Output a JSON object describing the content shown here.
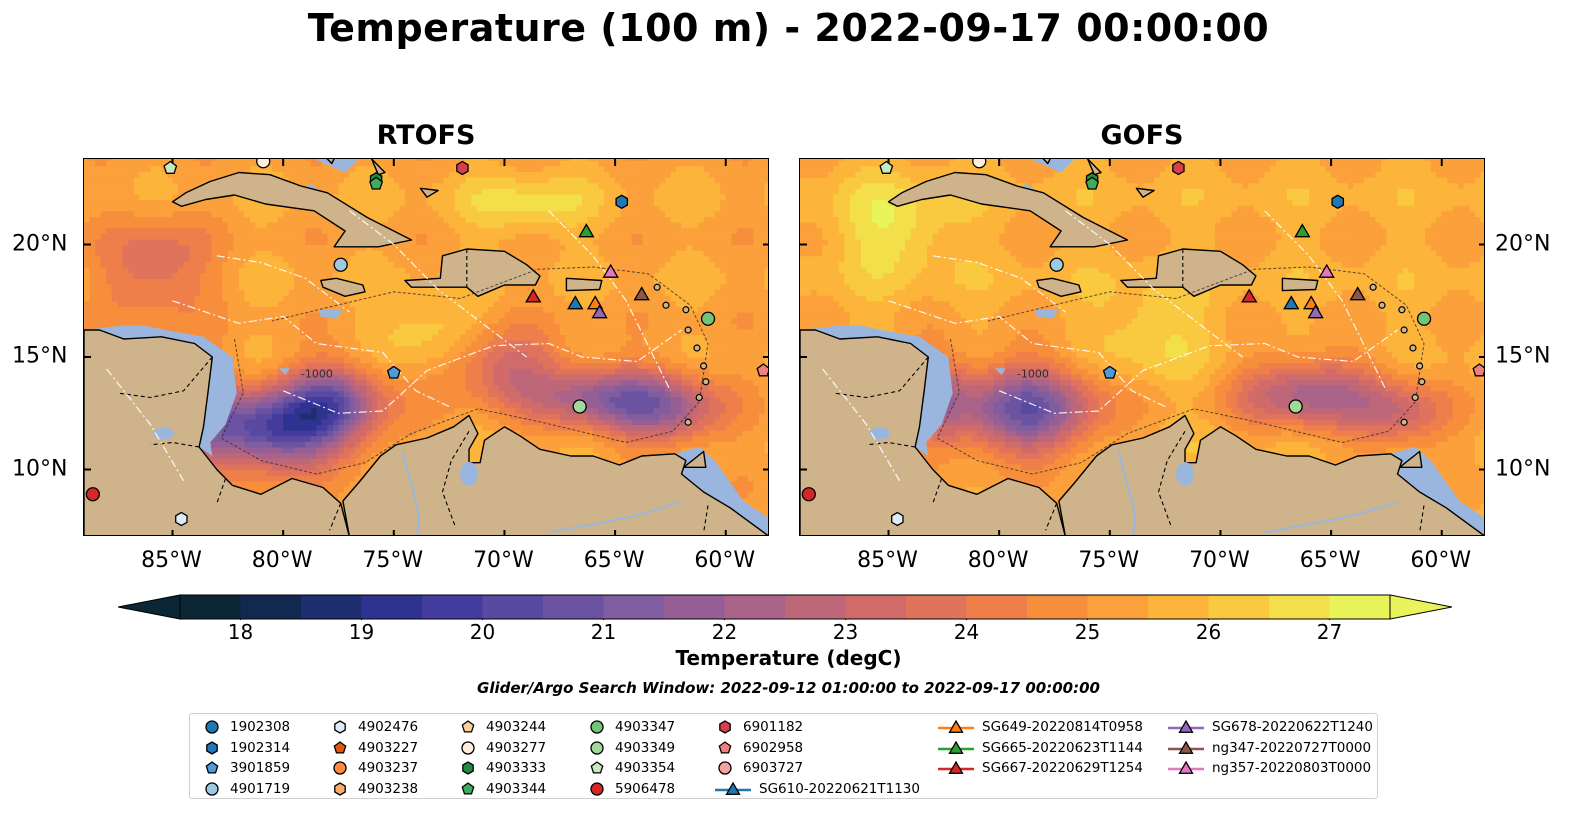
{
  "suptitle": "Temperature (100 m) - 2022-09-17 00:00:00",
  "panels": [
    {
      "title": "RTOFS",
      "field": "rtofs"
    },
    {
      "title": "GOFS",
      "field": "gofs"
    }
  ],
  "map": {
    "extent": {
      "lon_min": -89,
      "lon_max": -58,
      "lat_min": 7,
      "lat_max": 23.8
    },
    "lon_ticks": [
      {
        "value": -85,
        "label": "85°W"
      },
      {
        "value": -80,
        "label": "80°W"
      },
      {
        "value": -75,
        "label": "75°W"
      },
      {
        "value": -70,
        "label": "70°W"
      },
      {
        "value": -65,
        "label": "65°W"
      },
      {
        "value": -60,
        "label": "60°W"
      }
    ],
    "lat_ticks": [
      {
        "value": 20,
        "label": "20°N"
      },
      {
        "value": 15,
        "label": "15°N"
      },
      {
        "value": 10,
        "label": "10°N"
      }
    ],
    "bathy_label": "-1000",
    "colors": {
      "land": "#cfb48b",
      "shelf": "#9ab6de",
      "deep_pacific": "#0b2634"
    }
  },
  "colorbar": {
    "min": 17.5,
    "max": 27.5,
    "ticks": [
      {
        "value": 18,
        "label": "18"
      },
      {
        "value": 19,
        "label": "19"
      },
      {
        "value": 20,
        "label": "20"
      },
      {
        "value": 21,
        "label": "21"
      },
      {
        "value": 22,
        "label": "22"
      },
      {
        "value": 23,
        "label": "23"
      },
      {
        "value": 24,
        "label": "24"
      },
      {
        "value": 25,
        "label": "25"
      },
      {
        "value": 26,
        "label": "26"
      },
      {
        "value": 27,
        "label": "27"
      }
    ],
    "label": "Temperature (degC)",
    "colors": [
      "#0b2634",
      "#12294f",
      "#1e2e6e",
      "#2e3390",
      "#433c9e",
      "#594aa1",
      "#6c53a1",
      "#805d9f",
      "#955f96",
      "#aa6389",
      "#bd6779",
      "#d06b6a",
      "#e0735c",
      "#ee7f4a",
      "#f78e3c",
      "#fba03a",
      "#fcb43a",
      "#f9c940",
      "#f3df49",
      "#e9f45a"
    ]
  },
  "search_window": "Glider/Argo Search Window: 2022-09-12 01:00:00 to 2022-09-17 00:00:00",
  "platforms": [
    {
      "id": "1902308",
      "marker": "circle",
      "color": "#1f77b4",
      "lon": null,
      "lat": null
    },
    {
      "id": "1902314",
      "marker": "hexagon",
      "color": "#1f77b4",
      "lon": -64.7,
      "lat": 21.9
    },
    {
      "id": "3901859",
      "marker": "pentagon",
      "color": "#4f9bd9",
      "lon": -75.0,
      "lat": 14.3
    },
    {
      "id": "4901719",
      "marker": "circle",
      "color": "#9ecae1",
      "lon": -77.4,
      "lat": 19.1
    },
    {
      "id": "4902476",
      "marker": "hexagon",
      "color": "#deebf7",
      "lon": -84.6,
      "lat": 7.8
    },
    {
      "id": "4903227",
      "marker": "pentagon",
      "color": "#e6550d",
      "lon": null,
      "lat": null
    },
    {
      "id": "4903237",
      "marker": "circle",
      "color": "#fd8d3c",
      "lon": null,
      "lat": null
    },
    {
      "id": "4903238",
      "marker": "hexagon",
      "color": "#fdae6b",
      "lon": null,
      "lat": null
    },
    {
      "id": "4903244",
      "marker": "pentagon",
      "color": "#fdd0a2",
      "lon": null,
      "lat": null
    },
    {
      "id": "4903277",
      "marker": "circle",
      "color": "#feeedc",
      "lon": -80.9,
      "lat": 23.7
    },
    {
      "id": "4903333",
      "marker": "hexagon",
      "color": "#238b45",
      "lon": -75.8,
      "lat": 22.9
    },
    {
      "id": "4903344",
      "marker": "pentagon",
      "color": "#41ab5d",
      "lon": -75.8,
      "lat": 22.7
    },
    {
      "id": "4903347",
      "marker": "circle",
      "color": "#74c476",
      "lon": -60.8,
      "lat": 16.7
    },
    {
      "id": "4903349",
      "marker": "circle",
      "color": "#a1d99b",
      "lon": -66.6,
      "lat": 12.8
    },
    {
      "id": "4903354",
      "marker": "pentagon",
      "color": "#c7e9c0",
      "lon": -85.1,
      "lat": 23.4
    },
    {
      "id": "5906478",
      "marker": "circle",
      "color": "#d62728",
      "lon": -88.6,
      "lat": 8.9
    },
    {
      "id": "6901182",
      "marker": "hexagon",
      "color": "#d6404e",
      "lon": -71.9,
      "lat": 23.4
    },
    {
      "id": "6902958",
      "marker": "pentagon",
      "color": "#f08080",
      "lon": -58.3,
      "lat": 14.4
    },
    {
      "id": "6903727",
      "marker": "circle",
      "color": "#f4a3a3",
      "lon": null,
      "lat": null
    },
    {
      "id": "SG610-20220621T1130",
      "marker": "triangle",
      "color": "#1f77b4",
      "lon": -66.8,
      "lat": 17.4
    },
    {
      "id": "SG649-20220814T0958",
      "marker": "triangle",
      "color": "#ff7f0e",
      "lon": -65.9,
      "lat": 17.4
    },
    {
      "id": "SG665-20220623T1144",
      "marker": "triangle",
      "color": "#2ca02c",
      "lon": -66.3,
      "lat": 20.6
    },
    {
      "id": "SG667-20220629T1254",
      "marker": "triangle",
      "color": "#d62728",
      "lon": -68.7,
      "lat": 17.7
    },
    {
      "id": "SG678-20220622T1240",
      "marker": "triangle",
      "color": "#9467bd",
      "lon": -65.7,
      "lat": 17.0
    },
    {
      "id": "ng347-20220727T0000",
      "marker": "triangle",
      "color": "#8c564b",
      "lon": -63.8,
      "lat": 17.8
    },
    {
      "id": "ng357-20220803T0000",
      "marker": "triangle",
      "color": "#e377c2",
      "lon": -65.2,
      "lat": 18.8
    }
  ]
}
